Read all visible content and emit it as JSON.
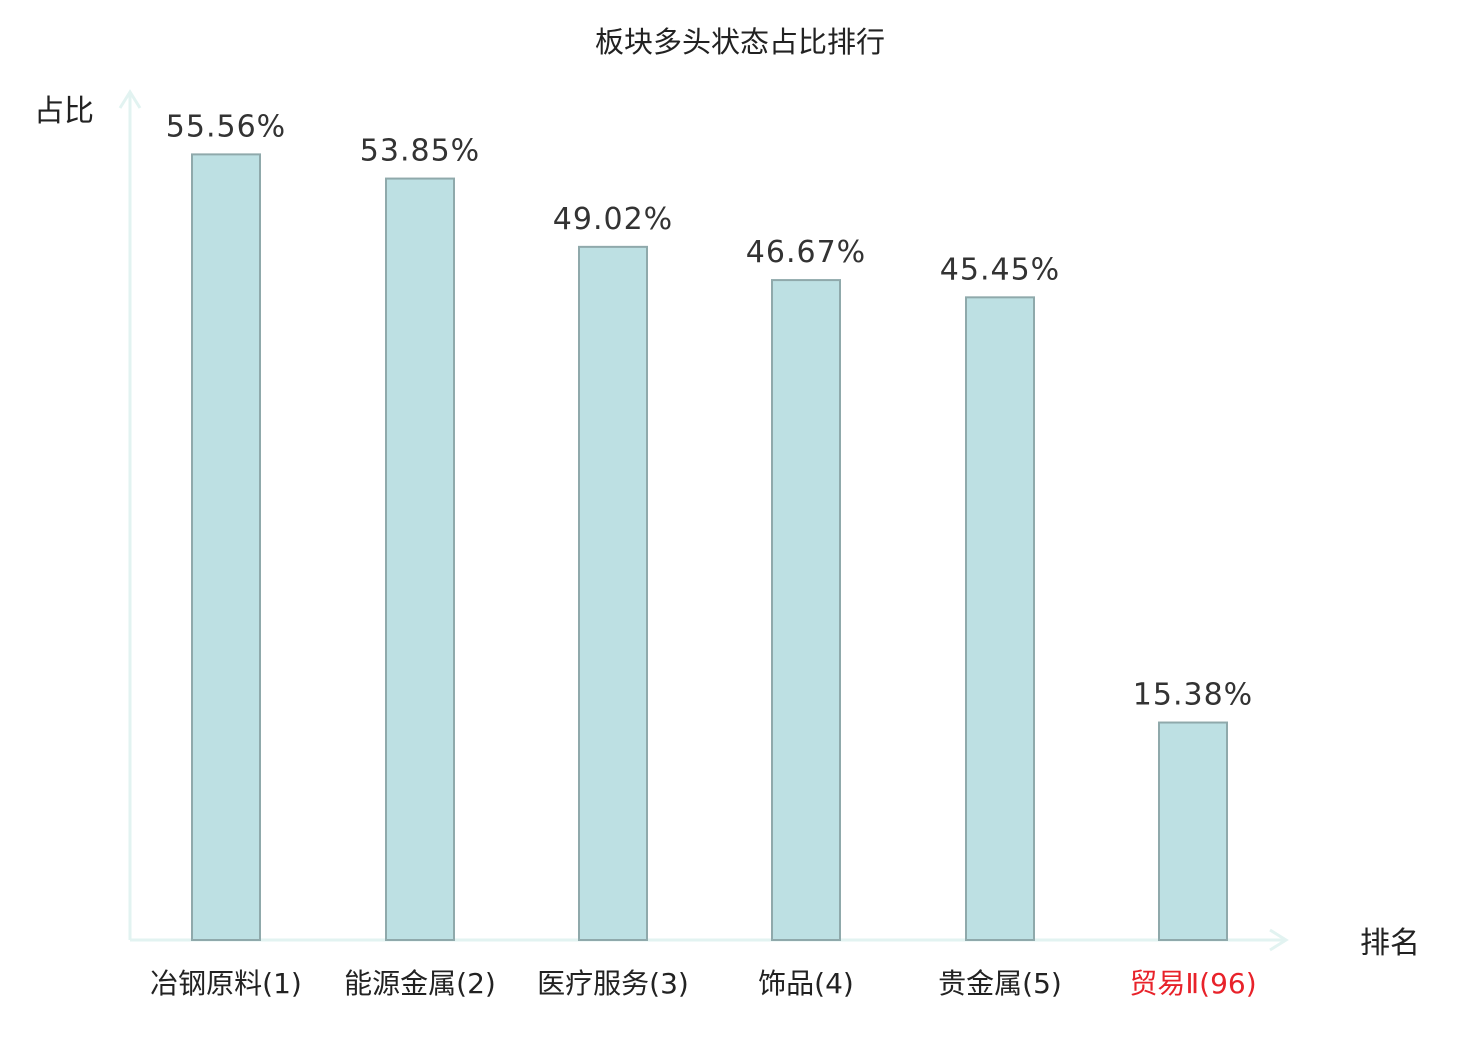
{
  "chart_data": {
    "type": "bar",
    "title": "板块多头状态占比排行",
    "ylabel": "占比",
    "xlabel": "排名",
    "categories": [
      "冶钢原料(1)",
      "能源金属(2)",
      "医疗服务(3)",
      "饰品(4)",
      "贵金属(5)",
      "贸易Ⅱ(96)"
    ],
    "values": [
      55.56,
      53.85,
      49.02,
      46.67,
      45.45,
      15.38
    ],
    "value_labels": [
      "55.56%",
      "53.85%",
      "49.02%",
      "46.67%",
      "45.45%",
      "15.38%"
    ],
    "highlight_index": 5,
    "ylim": [
      0,
      62
    ],
    "grid": false,
    "colors": {
      "bar_fill": "#bde0e3",
      "bar_stroke": "#8fa9ab",
      "axis": "#e2f3f1",
      "highlight_text": "#e8222a"
    }
  }
}
